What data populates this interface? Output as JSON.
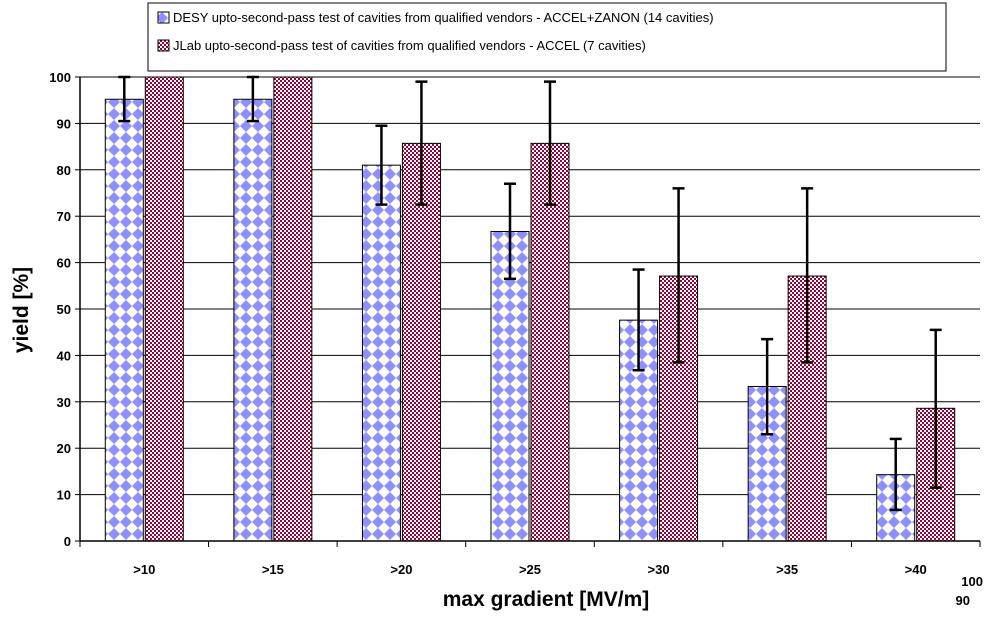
{
  "chart_data": {
    "type": "bar",
    "title": "",
    "xlabel": "max gradient [MV/m]",
    "ylabel": "yield [%]",
    "ylim": [
      0,
      100
    ],
    "yticks": [
      0,
      10,
      20,
      30,
      40,
      50,
      60,
      70,
      80,
      90,
      100
    ],
    "categories": [
      ">10",
      ">15",
      ">20",
      ">25",
      ">30",
      ">35",
      ">40"
    ],
    "grid": true,
    "legend_position": "top",
    "series": [
      {
        "name": "DESY upto-second-pass test of cavities from qualified vendors - ACCEL+ZANON (14 cavities)",
        "values": [
          95.2,
          95.2,
          81.0,
          66.7,
          47.6,
          33.3,
          14.3
        ],
        "error_low": [
          90.5,
          90.5,
          72.5,
          56.5,
          36.8,
          23.0,
          6.7
        ],
        "error_high": [
          100,
          100,
          89.5,
          77.0,
          58.5,
          43.5,
          22.0
        ],
        "pattern": "blue-diamond-checker",
        "colors": [
          "#8f8fff",
          "#ffffff"
        ]
      },
      {
        "name": "JLab upto-second-pass test of cavities from qualified vendors - ACCEL (7 cavities)",
        "values": [
          100,
          100,
          85.7,
          85.7,
          57.1,
          57.1,
          28.6
        ],
        "error_low": [
          100,
          100,
          72.5,
          72.5,
          38.5,
          38.5,
          11.5
        ],
        "error_high": [
          100,
          100,
          99.0,
          99.0,
          76.0,
          76.0,
          45.5
        ],
        "pattern": "maroon-checker",
        "colors": [
          "#990033",
          "#ffffff"
        ]
      }
    ],
    "stray_labels": [
      "100",
      "90"
    ]
  }
}
